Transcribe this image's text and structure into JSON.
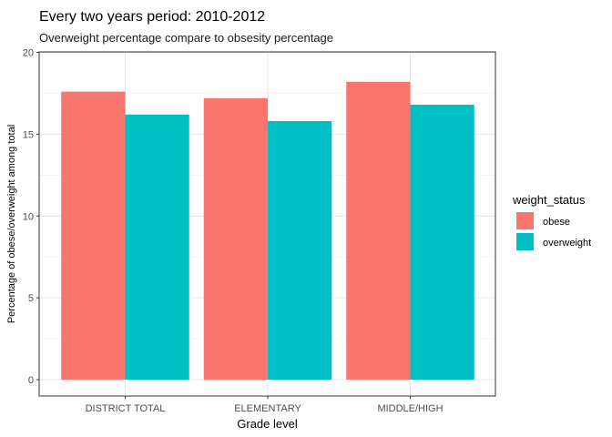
{
  "chart_data": {
    "type": "bar",
    "title": "Every two years period: 2010-2012",
    "subtitle": "Overweight percentage compare to obsesity percentage",
    "xlabel": "Grade level",
    "ylabel": "Percentage of obese/overweight among total",
    "categories": [
      "DISTRICT TOTAL",
      "ELEMENTARY",
      "MIDDLE/HIGH"
    ],
    "series": [
      {
        "name": "obese",
        "color": "#F8766D",
        "values": [
          17.6,
          17.2,
          18.2
        ]
      },
      {
        "name": "overweight",
        "color": "#00BFC4",
        "values": [
          16.2,
          15.8,
          16.8
        ]
      }
    ],
    "ylim": [
      0,
      20
    ],
    "yticks": [
      0,
      5,
      10,
      15,
      20
    ],
    "grid": true,
    "legend": {
      "title": "weight_status",
      "position": "right"
    }
  }
}
